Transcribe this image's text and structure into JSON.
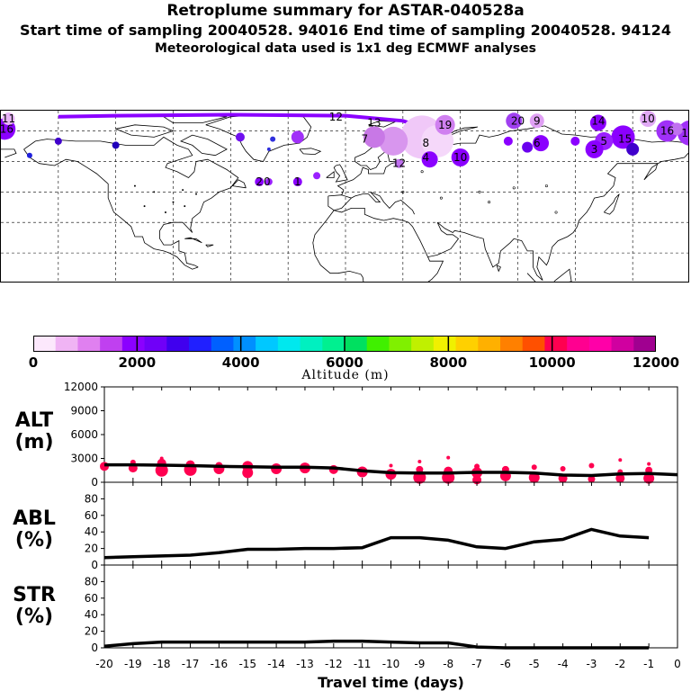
{
  "header": {
    "title": "Retroplume summary for ASTAR-040528a",
    "line2": "Start time of sampling 20040528. 94016      End time of sampling 20040528. 94124",
    "line3": "Meteorological data used is 1x1 deg ECMWF analyses"
  },
  "map": {
    "labels": [
      {
        "text": "11",
        "lon": -176,
        "lat": 81
      },
      {
        "text": "16",
        "lon": -177,
        "lat": 76
      },
      {
        "text": "12",
        "lon": -5,
        "lat": 82
      },
      {
        "text": "13",
        "lon": 15,
        "lat": 79
      },
      {
        "text": "19",
        "lon": 52,
        "lat": 78
      },
      {
        "text": "20",
        "lon": 90,
        "lat": 80
      },
      {
        "text": "9",
        "lon": 100,
        "lat": 80
      },
      {
        "text": "14",
        "lon": 132,
        "lat": 80
      },
      {
        "text": "10",
        "lon": 158,
        "lat": 81
      },
      {
        "text": "16",
        "lon": 168,
        "lat": 75
      },
      {
        "text": "17",
        "lon": 179,
        "lat": 74
      },
      {
        "text": "7",
        "lon": 10,
        "lat": 71
      },
      {
        "text": "8",
        "lon": 42,
        "lat": 69
      },
      {
        "text": "4",
        "lon": 42,
        "lat": 62
      },
      {
        "text": "10",
        "lon": 60,
        "lat": 62
      },
      {
        "text": "6",
        "lon": 100,
        "lat": 69
      },
      {
        "text": "3",
        "lon": 130,
        "lat": 66
      },
      {
        "text": "15",
        "lon": 146,
        "lat": 71
      },
      {
        "text": "5",
        "lon": 135,
        "lat": 70
      },
      {
        "text": "2",
        "lon": -45,
        "lat": 50
      },
      {
        "text": "1",
        "lon": -25,
        "lat": 50
      },
      {
        "text": "12",
        "lon": 28,
        "lat": 59
      },
      {
        "text": "0",
        "lon": -41,
        "lat": 50
      }
    ],
    "blobs": [
      {
        "lon": -178,
        "lat": 76,
        "r": 12,
        "color": "#8b00ff"
      },
      {
        "lon": -176,
        "lat": 81,
        "r": 7,
        "color": "#e8b4f8"
      },
      {
        "lon": 40,
        "lat": 72,
        "r": 24,
        "color": "#f0c8f8"
      },
      {
        "lon": 48,
        "lat": 70,
        "r": 18,
        "color": "#f5d8fa"
      },
      {
        "lon": 25,
        "lat": 70,
        "r": 16,
        "color": "#d896ee"
      },
      {
        "lon": 15,
        "lat": 72,
        "r": 12,
        "color": "#c878e6"
      },
      {
        "lon": 52,
        "lat": 78,
        "r": 11,
        "color": "#d080f0"
      },
      {
        "lon": 88,
        "lat": 80,
        "r": 9,
        "color": "#a040f0"
      },
      {
        "lon": 100,
        "lat": 80,
        "r": 8,
        "color": "#e0a0f4"
      },
      {
        "lon": 132,
        "lat": 79,
        "r": 9,
        "color": "#8b00ff"
      },
      {
        "lon": 145,
        "lat": 72,
        "r": 13,
        "color": "#8b00ff"
      },
      {
        "lon": 135,
        "lat": 70,
        "r": 10,
        "color": "#9b20ff"
      },
      {
        "lon": 130,
        "lat": 66,
        "r": 10,
        "color": "#8b00ff"
      },
      {
        "lon": 102,
        "lat": 69,
        "r": 9,
        "color": "#8b00ff"
      },
      {
        "lon": 95,
        "lat": 67,
        "r": 6,
        "color": "#6a00ee"
      },
      {
        "lon": 150,
        "lat": 66,
        "r": 7,
        "color": "#4000cc"
      },
      {
        "lon": 158,
        "lat": 81,
        "r": 9,
        "color": "#e0a8f4"
      },
      {
        "lon": 168,
        "lat": 75,
        "r": 12,
        "color": "#a030f8"
      },
      {
        "lon": 180,
        "lat": 74,
        "r": 14,
        "color": "#a030f8"
      },
      {
        "lon": 173,
        "lat": 76,
        "r": 7,
        "color": "#c070f0"
      },
      {
        "lon": 60,
        "lat": 62,
        "r": 10,
        "color": "#8b00ff"
      },
      {
        "lon": 44,
        "lat": 61,
        "r": 9,
        "color": "#8b00ff"
      },
      {
        "lon": -25,
        "lat": 72,
        "r": 7,
        "color": "#a030f8"
      },
      {
        "lon": -55,
        "lat": 72,
        "r": 5,
        "color": "#7010f0"
      },
      {
        "lon": -45,
        "lat": 50,
        "r": 5,
        "color": "#8b00ff"
      },
      {
        "lon": -40,
        "lat": 50,
        "r": 4,
        "color": "#9b20ff"
      },
      {
        "lon": -25,
        "lat": 50,
        "r": 5,
        "color": "#8b00ff"
      },
      {
        "lon": -15,
        "lat": 53,
        "r": 4,
        "color": "#9b20ff"
      },
      {
        "lon": -150,
        "lat": 70,
        "r": 4,
        "color": "#4000cc"
      },
      {
        "lon": -120,
        "lat": 68,
        "r": 4,
        "color": "#2000bb"
      },
      {
        "lon": -165,
        "lat": 63,
        "r": 3,
        "color": "#2020dd"
      },
      {
        "lon": -38,
        "lat": 71,
        "r": 3,
        "color": "#3030dd"
      },
      {
        "lon": -40,
        "lat": 66,
        "r": 2,
        "color": "#3030dd"
      },
      {
        "lon": 28,
        "lat": 59,
        "r": 5,
        "color": "#c070f0"
      },
      {
        "lon": 85,
        "lat": 70,
        "r": 5,
        "color": "#8b00ff"
      },
      {
        "lon": 120,
        "lat": 70,
        "r": 5,
        "color": "#8b00ff"
      }
    ],
    "trajectory": [
      {
        "lon": -150,
        "lat": 82
      },
      {
        "lon": -120,
        "lat": 82.5
      },
      {
        "lon": -60,
        "lat": 83
      },
      {
        "lon": 0,
        "lat": 82.5
      },
      {
        "lon": 30,
        "lat": 80
      },
      {
        "lon": 40,
        "lat": 77
      }
    ]
  },
  "colorbar": {
    "label": "Altitude (m)",
    "ticks": [
      "0",
      "2000",
      "4000",
      "6000",
      "8000",
      "10000",
      "12000"
    ],
    "colors": [
      "#fce8fc",
      "#f0b4f4",
      "#e080f0",
      "#c040f0",
      "#8b00ff",
      "#7000f8",
      "#4000ee",
      "#2020ff",
      "#0060ff",
      "#0090ff",
      "#00c8ff",
      "#00e8ee",
      "#00f0c0",
      "#00f090",
      "#00e060",
      "#40f000",
      "#80f000",
      "#c0f000",
      "#f0f000",
      "#ffd000",
      "#ffb000",
      "#ff8000",
      "#ff5000",
      "#ff0050",
      "#ff0090",
      "#ff00a8",
      "#d000a0",
      "#a00090"
    ]
  },
  "chart_data": [
    {
      "type": "line",
      "name": "ALT",
      "label": "ALT (m)",
      "ylabel_1": "ALT",
      "ylabel_2": "(m)",
      "ylim": [
        0,
        12000
      ],
      "yticks": [
        "0",
        "3000",
        "6000",
        "9000",
        "12000"
      ],
      "xlim": [
        -20,
        0
      ],
      "x": [
        -20,
        -19,
        -18,
        -17,
        -16,
        -15,
        -14,
        -13,
        -12,
        -11,
        -10,
        -9,
        -8,
        -7,
        -6,
        -5,
        -4,
        -3,
        -2,
        -1,
        0
      ],
      "values": [
        2200,
        2200,
        2150,
        2100,
        2000,
        1950,
        1900,
        1900,
        1800,
        1450,
        1200,
        1150,
        1150,
        1250,
        1250,
        1150,
        900,
        850,
        1050,
        1100,
        950
      ],
      "scatter": [
        {
          "x": -20,
          "y": 2000,
          "r": 5
        },
        {
          "x": -19,
          "y": 1800,
          "r": 5
        },
        {
          "x": -19,
          "y": 2500,
          "r": 3
        },
        {
          "x": -18,
          "y": 1500,
          "r": 7
        },
        {
          "x": -18,
          "y": 2400,
          "r": 5
        },
        {
          "x": -18,
          "y": 3000,
          "r": 2
        },
        {
          "x": -17,
          "y": 1600,
          "r": 7
        },
        {
          "x": -17,
          "y": 2200,
          "r": 5
        },
        {
          "x": -16,
          "y": 1700,
          "r": 6
        },
        {
          "x": -16,
          "y": 2100,
          "r": 4
        },
        {
          "x": -15,
          "y": 1200,
          "r": 6
        },
        {
          "x": -15,
          "y": 2000,
          "r": 6
        },
        {
          "x": -14,
          "y": 1700,
          "r": 6
        },
        {
          "x": -13,
          "y": 1800,
          "r": 6
        },
        {
          "x": -12,
          "y": 1600,
          "r": 5
        },
        {
          "x": -11,
          "y": 1300,
          "r": 6
        },
        {
          "x": -10,
          "y": 1000,
          "r": 6
        },
        {
          "x": -10,
          "y": 2100,
          "r": 2
        },
        {
          "x": -9,
          "y": 600,
          "r": 7
        },
        {
          "x": -9,
          "y": 1600,
          "r": 4
        },
        {
          "x": -9,
          "y": 2600,
          "r": 2
        },
        {
          "x": -8,
          "y": 600,
          "r": 7
        },
        {
          "x": -8,
          "y": 1400,
          "r": 5
        },
        {
          "x": -8,
          "y": 3100,
          "r": 2
        },
        {
          "x": -7,
          "y": 300,
          "r": 5
        },
        {
          "x": -7,
          "y": 1200,
          "r": 6
        },
        {
          "x": -7,
          "y": 2000,
          "r": 3
        },
        {
          "x": -6,
          "y": 800,
          "r": 6
        },
        {
          "x": -6,
          "y": 1600,
          "r": 4
        },
        {
          "x": -5,
          "y": 600,
          "r": 6
        },
        {
          "x": -5,
          "y": 1900,
          "r": 3
        },
        {
          "x": -4,
          "y": 500,
          "r": 5
        },
        {
          "x": -4,
          "y": 1700,
          "r": 3
        },
        {
          "x": -3,
          "y": 400,
          "r": 4
        },
        {
          "x": -3,
          "y": 2100,
          "r": 3
        },
        {
          "x": -2,
          "y": 500,
          "r": 5
        },
        {
          "x": -2,
          "y": 1300,
          "r": 3
        },
        {
          "x": -2,
          "y": 2800,
          "r": 2
        },
        {
          "x": -1,
          "y": 500,
          "r": 6
        },
        {
          "x": -1,
          "y": 1500,
          "r": 4
        },
        {
          "x": -1,
          "y": 2300,
          "r": 2
        }
      ]
    },
    {
      "type": "line",
      "name": "ABL",
      "label": "ABL (%)",
      "ylabel_1": "ABL",
      "ylabel_2": "(%)",
      "ylim": [
        0,
        100
      ],
      "yticks": [
        "0",
        "20",
        "40",
        "60",
        "80"
      ],
      "xlim": [
        -20,
        0
      ],
      "x": [
        -20,
        -19,
        -18,
        -17,
        -16,
        -15,
        -14,
        -13,
        -12,
        -11,
        -10,
        -9,
        -8,
        -7,
        -6,
        -5,
        -4,
        -3,
        -2,
        -1
      ],
      "values": [
        9,
        10,
        11,
        12,
        15,
        19,
        19,
        20,
        20,
        21,
        33,
        33,
        30,
        22,
        20,
        28,
        31,
        43,
        35,
        33
      ]
    },
    {
      "type": "line",
      "name": "STR",
      "label": "STR (%)",
      "ylabel_1": "STR",
      "ylabel_2": "(%)",
      "ylim": [
        0,
        100
      ],
      "yticks": [
        "0",
        "20",
        "40",
        "60",
        "80"
      ],
      "xlim": [
        -20,
        0
      ],
      "xticks": [
        "-20",
        "-19",
        "-18",
        "-17",
        "-16",
        "-15",
        "-14",
        "-13",
        "-12",
        "-11",
        "-10",
        "-9",
        "-8",
        "-7",
        "-6",
        "-5",
        "-4",
        "-3",
        "-2",
        "-1",
        "0"
      ],
      "xlabel": "Travel time (days)",
      "x": [
        -20,
        -19,
        -18,
        -17,
        -16,
        -15,
        -14,
        -13,
        -12,
        -11,
        -10,
        -9,
        -8,
        -7,
        -6,
        -5,
        -4,
        -3,
        -2,
        -1
      ],
      "values": [
        2,
        5,
        7,
        7,
        7,
        7,
        7,
        7,
        8,
        8,
        7,
        6,
        6,
        1,
        0,
        0,
        0,
        0,
        0,
        0
      ]
    }
  ]
}
